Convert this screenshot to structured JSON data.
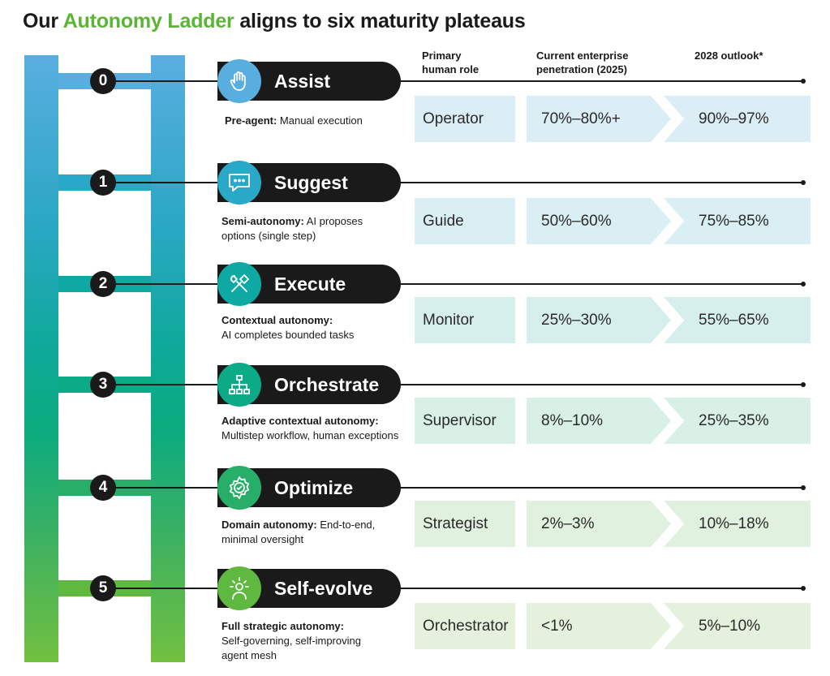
{
  "title": {
    "prefix": "Our ",
    "highlight": "Autonomy Ladder",
    "suffix": " aligns to six maturity plateaus"
  },
  "headers": {
    "role": [
      "Primary",
      "human role"
    ],
    "current": [
      "Current enterprise",
      "penetration (2025)"
    ],
    "outlook": "2028 outlook*"
  },
  "colors": {
    "accent_green": "#5bb534",
    "pill_black": "#1a1a1a"
  },
  "levels": [
    {
      "number": "0",
      "name": "Assist",
      "icon": "hand-icon",
      "desc_bold": "Pre-agent:",
      "desc_lines": [
        " Manual execution"
      ],
      "role": "Operator",
      "current": "70%–80%+",
      "outlook": "90%–97%",
      "icon_color": "#59aee0",
      "cell_color": "#dceef5"
    },
    {
      "number": "1",
      "name": "Suggest",
      "icon": "chat-bubble-icon",
      "desc_bold": "Semi-autonomy:",
      "desc_lines": [
        " AI proposes",
        "options (single step)"
      ],
      "role": "Guide",
      "current": "50%–60%",
      "outlook": "75%–85%",
      "icon_color": "#2aa8c8",
      "cell_color": "#d9eff3"
    },
    {
      "number": "2",
      "name": "Execute",
      "icon": "tools-icon",
      "desc_bold": "Contextual autonomy:",
      "desc_lines": [
        "AI completes bounded tasks"
      ],
      "role": "Monitor",
      "current": "25%–30%",
      "outlook": "55%–65%",
      "icon_color": "#0fa9a4",
      "cell_color": "#d6efed"
    },
    {
      "number": "3",
      "name": "Orchestrate",
      "icon": "hierarchy-icon",
      "desc_bold": "Adaptive contextual autonomy:",
      "desc_lines": [
        "Multistep workflow, human exceptions"
      ],
      "role": "Supervisor",
      "current": "8%–10%",
      "outlook": "25%–35%",
      "icon_color": "#0aab86",
      "cell_color": "#d8f0e6"
    },
    {
      "number": "4",
      "name": "Optimize",
      "icon": "gear-check-icon",
      "desc_bold": "Domain autonomy:",
      "desc_lines": [
        " End-to-end,",
        "minimal oversight"
      ],
      "role": "Strategist",
      "current": "2%–3%",
      "outlook": "10%–18%",
      "icon_color": "#27ae68",
      "cell_color": "#e0f1df"
    },
    {
      "number": "5",
      "name": "Self-evolve",
      "icon": "lightbulb-person-icon",
      "desc_bold": "Full strategic autonomy:",
      "desc_lines": [
        "Self-governing, self-improving",
        "agent mesh"
      ],
      "role": "Orchestrator",
      "current": "<1%",
      "outlook": "5%–10%",
      "icon_color": "#5fb840",
      "cell_color": "#e4f2dd"
    }
  ]
}
